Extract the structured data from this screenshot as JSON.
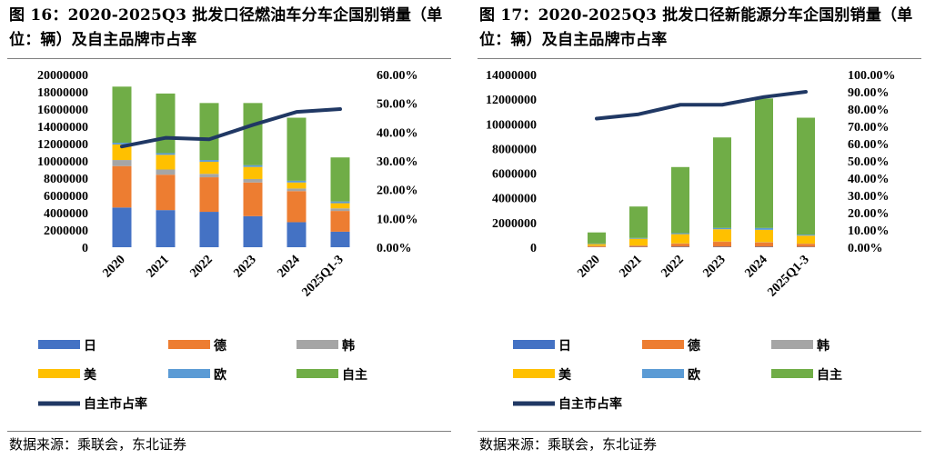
{
  "charts": [
    {
      "title": "图 16：2020-2025Q3 批发口径燃油车分车企国别销量（单位：辆）及自主品牌市占率",
      "source": "数据来源：乘联会，东北证券"
    },
    {
      "title": "图 17：2020-2025Q3 批发口径新能源分车企国别销量（单位：辆）及自主品牌市占率",
      "source": "数据来源：乘联会，东北证券"
    }
  ],
  "chart_data": [
    {
      "type": "bar",
      "stacked": true,
      "categories": [
        "2020",
        "2021",
        "2022",
        "2023",
        "2024",
        "2025Q1-3"
      ],
      "y_ticks": [
        "0",
        "2000000",
        "4000000",
        "6000000",
        "8000000",
        "10000000",
        "12000000",
        "14000000",
        "16000000",
        "18000000",
        "20000000"
      ],
      "y2_ticks": [
        "0.00%",
        "10.00%",
        "20.00%",
        "30.00%",
        "40.00%",
        "50.00%",
        "60.00%"
      ],
      "ylim": [
        0,
        20000000
      ],
      "y2lim": [
        0,
        0.6
      ],
      "series": [
        {
          "name": "日",
          "color": "#4472C4",
          "values": [
            4600000,
            4300000,
            4100000,
            3600000,
            2900000,
            1800000
          ]
        },
        {
          "name": "德",
          "color": "#ED7D31",
          "values": [
            4800000,
            4100000,
            4000000,
            3900000,
            3600000,
            2400000
          ]
        },
        {
          "name": "韩",
          "color": "#A5A5A5",
          "values": [
            700000,
            600000,
            400000,
            400000,
            300000,
            300000
          ]
        },
        {
          "name": "美",
          "color": "#FFC000",
          "values": [
            1800000,
            1700000,
            1400000,
            1400000,
            700000,
            600000
          ]
        },
        {
          "name": "欧",
          "color": "#5B9BD5",
          "values": [
            200000,
            200000,
            200000,
            200000,
            200000,
            200000
          ]
        },
        {
          "name": "自主",
          "color": "#70AD47",
          "values": [
            6500000,
            6900000,
            6600000,
            7200000,
            7300000,
            5100000
          ]
        }
      ],
      "line": {
        "name": "自主市占率",
        "color": "#203864",
        "values": [
          0.35,
          0.38,
          0.375,
          0.425,
          0.47,
          0.48
        ]
      }
    },
    {
      "type": "bar",
      "stacked": true,
      "categories": [
        "2020",
        "2021",
        "2022",
        "2023",
        "2024",
        "2025Q1-3"
      ],
      "y_ticks": [
        "0",
        "2000000",
        "4000000",
        "6000000",
        "8000000",
        "10000000",
        "12000000",
        "14000000"
      ],
      "y2_ticks": [
        "0.00%",
        "10.00%",
        "20.00%",
        "30.00%",
        "40.00%",
        "50.00%",
        "60.00%",
        "70.00%",
        "80.00%",
        "90.00%",
        "100.00%"
      ],
      "ylim": [
        0,
        14000000
      ],
      "y2lim": [
        0,
        1.0
      ],
      "series": [
        {
          "name": "日",
          "color": "#4472C4",
          "values": [
            20000,
            30000,
            40000,
            40000,
            40000,
            30000
          ]
        },
        {
          "name": "德",
          "color": "#ED7D31",
          "values": [
            80000,
            100000,
            250000,
            400000,
            350000,
            250000
          ]
        },
        {
          "name": "韩",
          "color": "#A5A5A5",
          "values": [
            10000,
            10000,
            20000,
            20000,
            20000,
            10000
          ]
        },
        {
          "name": "美",
          "color": "#FFC000",
          "values": [
            150000,
            550000,
            750000,
            1000000,
            1000000,
            650000
          ]
        },
        {
          "name": "欧",
          "color": "#5B9BD5",
          "values": [
            40000,
            60000,
            80000,
            100000,
            150000,
            80000
          ]
        },
        {
          "name": "自主",
          "color": "#70AD47",
          "values": [
            900000,
            2550000,
            5360000,
            7340000,
            10500000,
            9480000
          ]
        }
      ],
      "line": {
        "name": "自主市占率",
        "color": "#203864",
        "values": [
          0.745,
          0.77,
          0.825,
          0.825,
          0.87,
          0.9
        ]
      }
    }
  ]
}
